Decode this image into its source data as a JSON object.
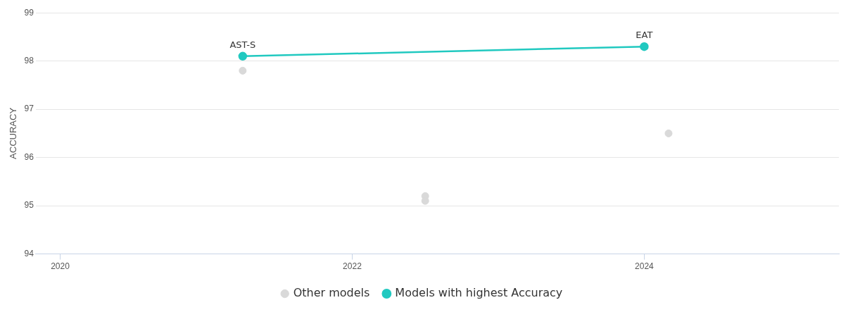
{
  "chart_data": {
    "type": "scatter",
    "ylabel": "ACCURACY",
    "xlim": [
      "2019-11",
      "2025-05"
    ],
    "xticks": [
      "2020",
      "2022",
      "2024"
    ],
    "ylim": [
      94,
      99
    ],
    "yticks": [
      94,
      95,
      96,
      97,
      98,
      99
    ],
    "grid": "y",
    "legend": "bottom",
    "marker": "circle",
    "series": [
      {
        "name": "Other models",
        "color": "#d9d9d9",
        "x": [
          "2021-04",
          "2022-07",
          "2022-07",
          "2024-03"
        ],
        "values": [
          97.8,
          95.2,
          95.1,
          96.5
        ]
      },
      {
        "name": "Models with highest Accuracy",
        "type": "line",
        "color": "#21c9c0",
        "x": [
          "2021-04",
          "2024-01"
        ],
        "values": [
          98.1,
          98.3
        ]
      }
    ],
    "annotations": [
      {
        "text": "AST-S",
        "x": "2021-04",
        "y": 98.1
      },
      {
        "text": "EAT",
        "x": "2024-01",
        "y": 98.3
      }
    ]
  }
}
